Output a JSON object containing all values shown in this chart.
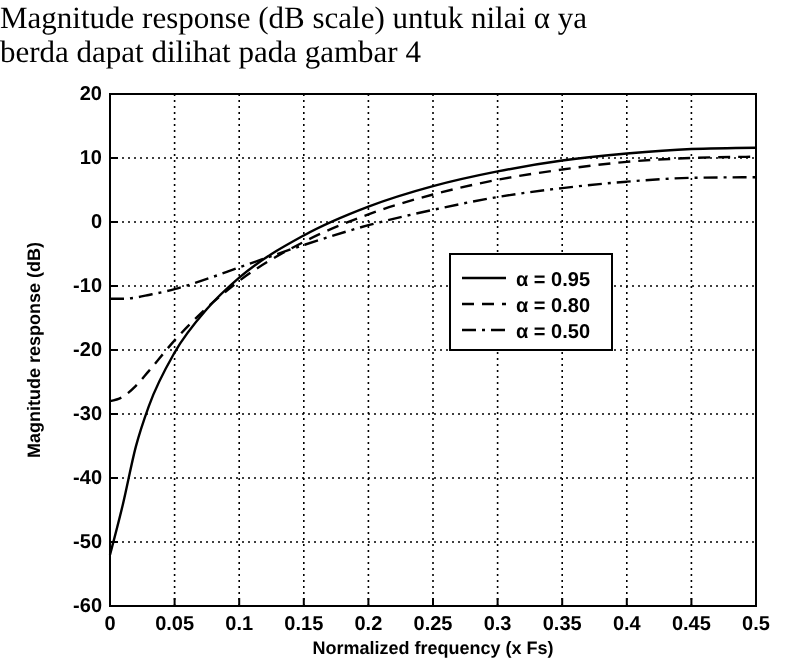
{
  "chart_data": {
    "type": "line",
    "xlabel": "Normalized frequency (x Fs)",
    "ylabel": "Magnitude response (dB)",
    "annotations": [
      "Magnitude response (dB scale) untuk nilai α ya",
      "berda dapat dilihat pada gambar 4"
    ],
    "x": [
      0,
      0.01,
      0.02,
      0.03,
      0.05,
      0.075,
      0.1,
      0.15,
      0.2,
      0.25,
      0.3,
      0.35,
      0.4,
      0.45,
      0.5
    ],
    "series": [
      {
        "name": "α = 0.95",
        "color": "#000000",
        "line_style": "solid",
        "values": [
          -52,
          -44.1,
          -35.1,
          -28.8,
          -20.4,
          -13.6,
          -8.7,
          -2.1,
          2.4,
          5.6,
          7.9,
          9.6,
          10.7,
          11.4,
          11.6
        ]
      },
      {
        "name": "α = 0.80",
        "color": "#000000",
        "line_style": "dashed",
        "values": [
          -28,
          -27.3,
          -25.6,
          -23.3,
          -18.5,
          -13.4,
          -9.2,
          -3.1,
          1.2,
          4.3,
          6.6,
          8.2,
          9.4,
          10,
          10.2
        ]
      },
      {
        "name": "α = 0.50",
        "color": "#000000",
        "line_style": "dashdot",
        "values": [
          -12,
          -12,
          -11.8,
          -11.4,
          -10.5,
          -8.9,
          -7.1,
          -3.6,
          -0.5,
          1.9,
          3.9,
          5.3,
          6.3,
          6.9,
          7
        ]
      }
    ],
    "xlim": [
      0,
      0.5
    ],
    "xticks": [
      0,
      0.05,
      0.1,
      0.15,
      0.2,
      0.25,
      0.3,
      0.35,
      0.4,
      0.45,
      0.5
    ],
    "ylim": [
      -60,
      20
    ],
    "yticks": [
      -60,
      -50,
      -40,
      -30,
      -20,
      -10,
      0,
      10,
      20
    ],
    "grid": true,
    "legend": "right"
  }
}
